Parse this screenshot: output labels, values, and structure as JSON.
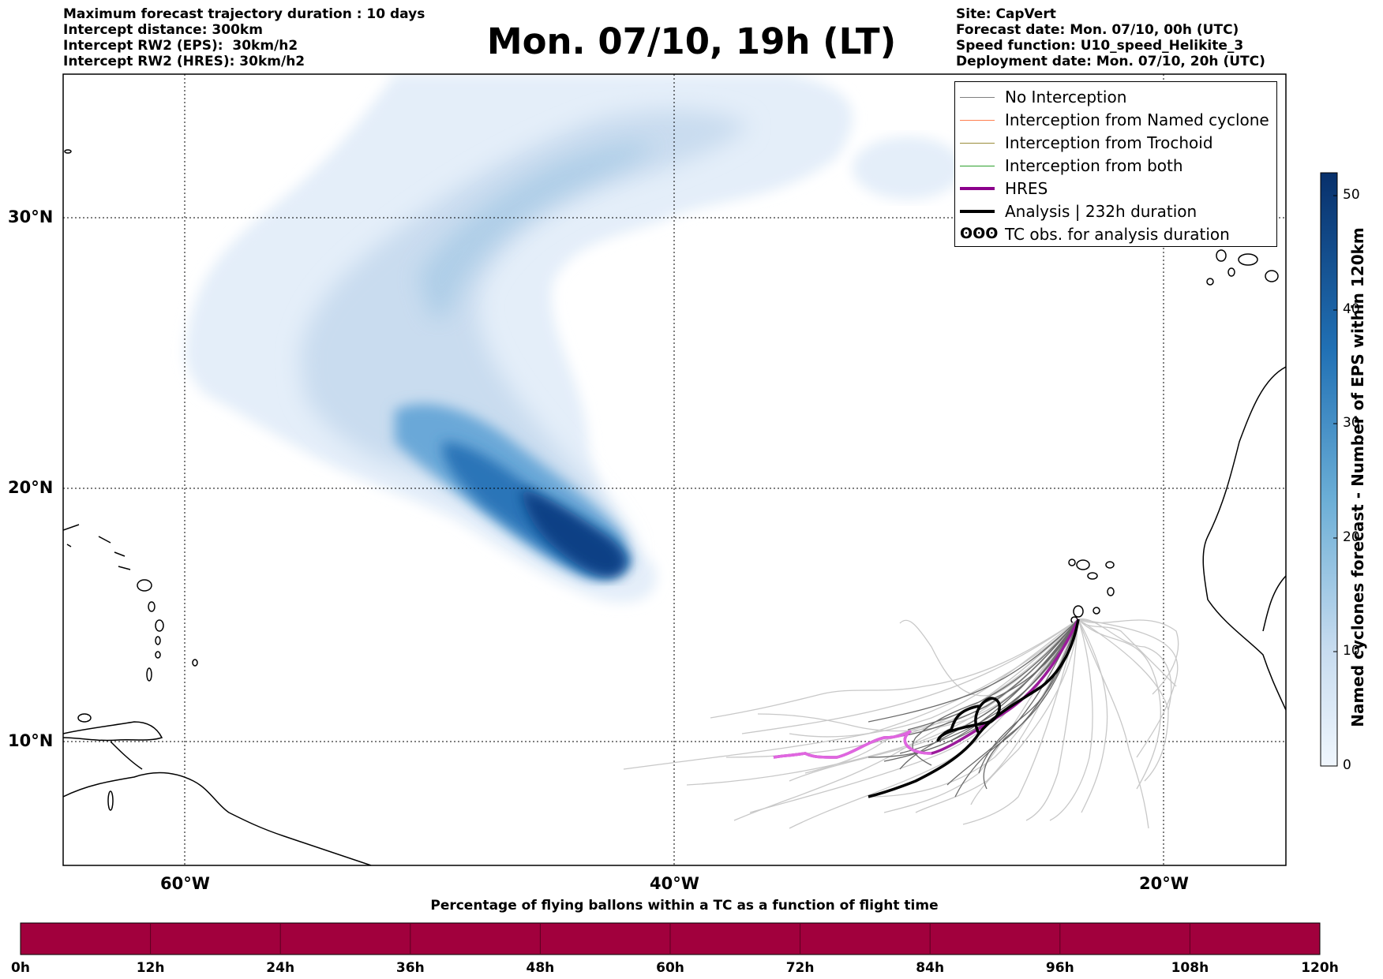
{
  "header_left": [
    "Maximum forecast trajectory duration : 10 days",
    "Intercept distance: 300km",
    "Intercept RW2 (EPS):  30km/h2",
    "Intercept RW2 (HRES): 30km/h2"
  ],
  "header_right": [
    "Site: CapVert",
    "Forecast date: Mon. 07/10, 00h (UTC)",
    "Speed function: U10_speed_Helikite_3",
    "Deployment date: Mon. 07/10, 20h (UTC)"
  ],
  "title": "Mon. 07/10, 19h (LT)",
  "map": {
    "lat_labels": [
      "30°N",
      "20°N",
      "10°N"
    ],
    "lon_labels": [
      "60°W",
      "40°W",
      "20°W"
    ],
    "grid": "dotted",
    "extent": {
      "lon": [
        -65,
        -15
      ],
      "lat": [
        5.5,
        35
      ]
    }
  },
  "legend": {
    "placement": "top-right",
    "items": [
      {
        "label": "No Interception",
        "color": "#808080"
      },
      {
        "label": "Interception from Named cyclone",
        "color": "#ff7f50"
      },
      {
        "label": "Interception from Trochoid",
        "color": "#9a8c3a"
      },
      {
        "label": "Interception from both",
        "color": "#2ca02c"
      },
      {
        "label": "HRES",
        "color": "#8b008b"
      },
      {
        "label": "Analysis | 232h duration",
        "color": "#000000"
      },
      {
        "label": "TC obs. for analysis duration",
        "symbol": "ʘʘʘ"
      }
    ]
  },
  "colorbar": {
    "title": "Named cyclones forecast - Number of EPS within 120km",
    "ticks": [
      "50",
      "40",
      "30",
      "20",
      "10",
      "0"
    ],
    "range": [
      0,
      52
    ],
    "color_low": "#f0f6fd",
    "color_high": "#08306b"
  },
  "flight_bar": {
    "title": "Percentage of flying ballons within a TC as a function of flight time",
    "color": "#a1003d",
    "ticks": [
      "0h",
      "12h",
      "24h",
      "36h",
      "48h",
      "60h",
      "72h",
      "84h",
      "96h",
      "108h",
      "120h"
    ]
  }
}
